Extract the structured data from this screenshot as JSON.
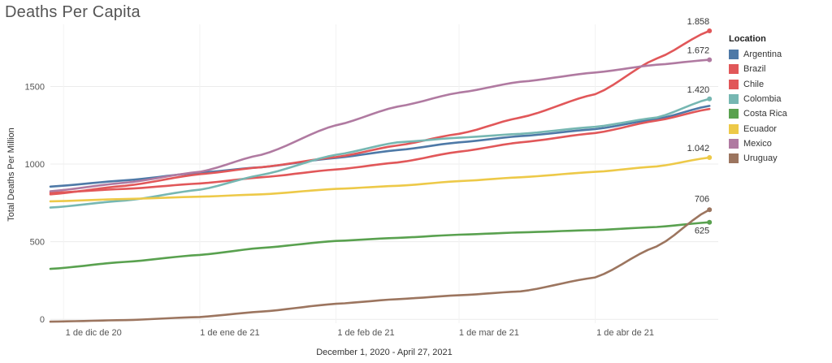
{
  "title": "Deaths Per Capita",
  "legend": {
    "title": "Location",
    "position": "right"
  },
  "chart_data": {
    "type": "line",
    "title": "Deaths Per Capita",
    "xlabel": "December 1, 2020 - April 27, 2021",
    "ylabel": "Total Deaths Per Million",
    "x_range": [
      "2020-11-28",
      "2021-04-29"
    ],
    "ylim": [
      -25,
      1900
    ],
    "y_ticks": [
      {
        "value": 0,
        "label": "0"
      },
      {
        "value": 500,
        "label": "500"
      },
      {
        "value": 1000,
        "label": "1000"
      },
      {
        "value": 1500,
        "label": "1500"
      }
    ],
    "x_ticks": [
      {
        "date": "2020-12-01",
        "label": "1 de dic de 20"
      },
      {
        "date": "2021-01-01",
        "label": "1 de ene de 21"
      },
      {
        "date": "2021-02-01",
        "label": "1 de feb de 21"
      },
      {
        "date": "2021-03-01",
        "label": "1 de mar de 21"
      },
      {
        "date": "2021-04-01",
        "label": "1 de abr de 21"
      }
    ],
    "grid": true,
    "series": [
      {
        "name": "Argentina",
        "color": "#4e79a7",
        "points": [
          [
            "2020-11-28",
            855
          ],
          [
            "2020-12-15",
            895
          ],
          [
            "2021-01-01",
            945
          ],
          [
            "2021-01-15",
            980
          ],
          [
            "2021-02-01",
            1040
          ],
          [
            "2021-02-15",
            1090
          ],
          [
            "2021-03-01",
            1140
          ],
          [
            "2021-03-15",
            1180
          ],
          [
            "2021-04-01",
            1225
          ],
          [
            "2021-04-15",
            1290
          ],
          [
            "2021-04-27",
            1375
          ]
        ]
      },
      {
        "name": "Brazil",
        "color": "#e15759",
        "points": [
          [
            "2020-11-28",
            815
          ],
          [
            "2020-12-15",
            840
          ],
          [
            "2021-01-01",
            875
          ],
          [
            "2021-01-15",
            915
          ],
          [
            "2021-02-01",
            965
          ],
          [
            "2021-02-15",
            1010
          ],
          [
            "2021-03-01",
            1080
          ],
          [
            "2021-03-15",
            1140
          ],
          [
            "2021-04-01",
            1200
          ],
          [
            "2021-04-15",
            1280
          ],
          [
            "2021-04-27",
            1355
          ]
        ]
      },
      {
        "name": "Chile",
        "color": "#e15759",
        "points": [
          [
            "2020-11-28",
            805
          ],
          [
            "2020-12-15",
            860
          ],
          [
            "2021-01-01",
            935
          ],
          [
            "2021-01-15",
            980
          ],
          [
            "2021-02-01",
            1045
          ],
          [
            "2021-02-15",
            1120
          ],
          [
            "2021-03-01",
            1195
          ],
          [
            "2021-03-15",
            1300
          ],
          [
            "2021-04-01",
            1450
          ],
          [
            "2021-04-15",
            1680
          ],
          [
            "2021-04-27",
            1858
          ]
        ],
        "end_label": "1.858"
      },
      {
        "name": "Colombia",
        "color": "#76b7b2",
        "points": [
          [
            "2020-11-28",
            720
          ],
          [
            "2020-12-15",
            765
          ],
          [
            "2021-01-01",
            835
          ],
          [
            "2021-01-15",
            930
          ],
          [
            "2021-02-01",
            1060
          ],
          [
            "2021-02-15",
            1140
          ],
          [
            "2021-03-01",
            1170
          ],
          [
            "2021-03-15",
            1195
          ],
          [
            "2021-04-01",
            1240
          ],
          [
            "2021-04-15",
            1300
          ],
          [
            "2021-04-27",
            1420
          ]
        ],
        "end_label": "1.420"
      },
      {
        "name": "Costa Rica",
        "color": "#59a14f",
        "points": [
          [
            "2020-11-28",
            325
          ],
          [
            "2020-12-15",
            370
          ],
          [
            "2021-01-01",
            415
          ],
          [
            "2021-01-15",
            460
          ],
          [
            "2021-02-01",
            505
          ],
          [
            "2021-02-15",
            525
          ],
          [
            "2021-03-01",
            545
          ],
          [
            "2021-03-15",
            560
          ],
          [
            "2021-04-01",
            575
          ],
          [
            "2021-04-15",
            595
          ],
          [
            "2021-04-27",
            625
          ]
        ],
        "end_label": "625"
      },
      {
        "name": "Ecuador",
        "color": "#edc948",
        "points": [
          [
            "2020-11-28",
            760
          ],
          [
            "2020-12-15",
            775
          ],
          [
            "2021-01-01",
            790
          ],
          [
            "2021-01-15",
            805
          ],
          [
            "2021-02-01",
            840
          ],
          [
            "2021-02-15",
            860
          ],
          [
            "2021-03-01",
            890
          ],
          [
            "2021-03-15",
            915
          ],
          [
            "2021-04-01",
            950
          ],
          [
            "2021-04-15",
            985
          ],
          [
            "2021-04-27",
            1042
          ]
        ],
        "end_label": "1.042"
      },
      {
        "name": "Mexico",
        "color": "#b07aa1",
        "points": [
          [
            "2020-11-28",
            825
          ],
          [
            "2020-12-15",
            880
          ],
          [
            "2021-01-01",
            950
          ],
          [
            "2021-01-15",
            1060
          ],
          [
            "2021-02-01",
            1250
          ],
          [
            "2021-02-15",
            1370
          ],
          [
            "2021-03-01",
            1460
          ],
          [
            "2021-03-15",
            1530
          ],
          [
            "2021-04-01",
            1590
          ],
          [
            "2021-04-15",
            1640
          ],
          [
            "2021-04-27",
            1672
          ]
        ],
        "end_label": "1.672"
      },
      {
        "name": "Uruguay",
        "color": "#9c755f",
        "points": [
          [
            "2020-11-28",
            -15
          ],
          [
            "2020-12-15",
            -5
          ],
          [
            "2021-01-01",
            15
          ],
          [
            "2021-01-15",
            50
          ],
          [
            "2021-02-01",
            100
          ],
          [
            "2021-02-15",
            130
          ],
          [
            "2021-03-01",
            155
          ],
          [
            "2021-03-15",
            180
          ],
          [
            "2021-04-01",
            270
          ],
          [
            "2021-04-15",
            470
          ],
          [
            "2021-04-27",
            706
          ]
        ],
        "end_label": "706"
      }
    ]
  }
}
